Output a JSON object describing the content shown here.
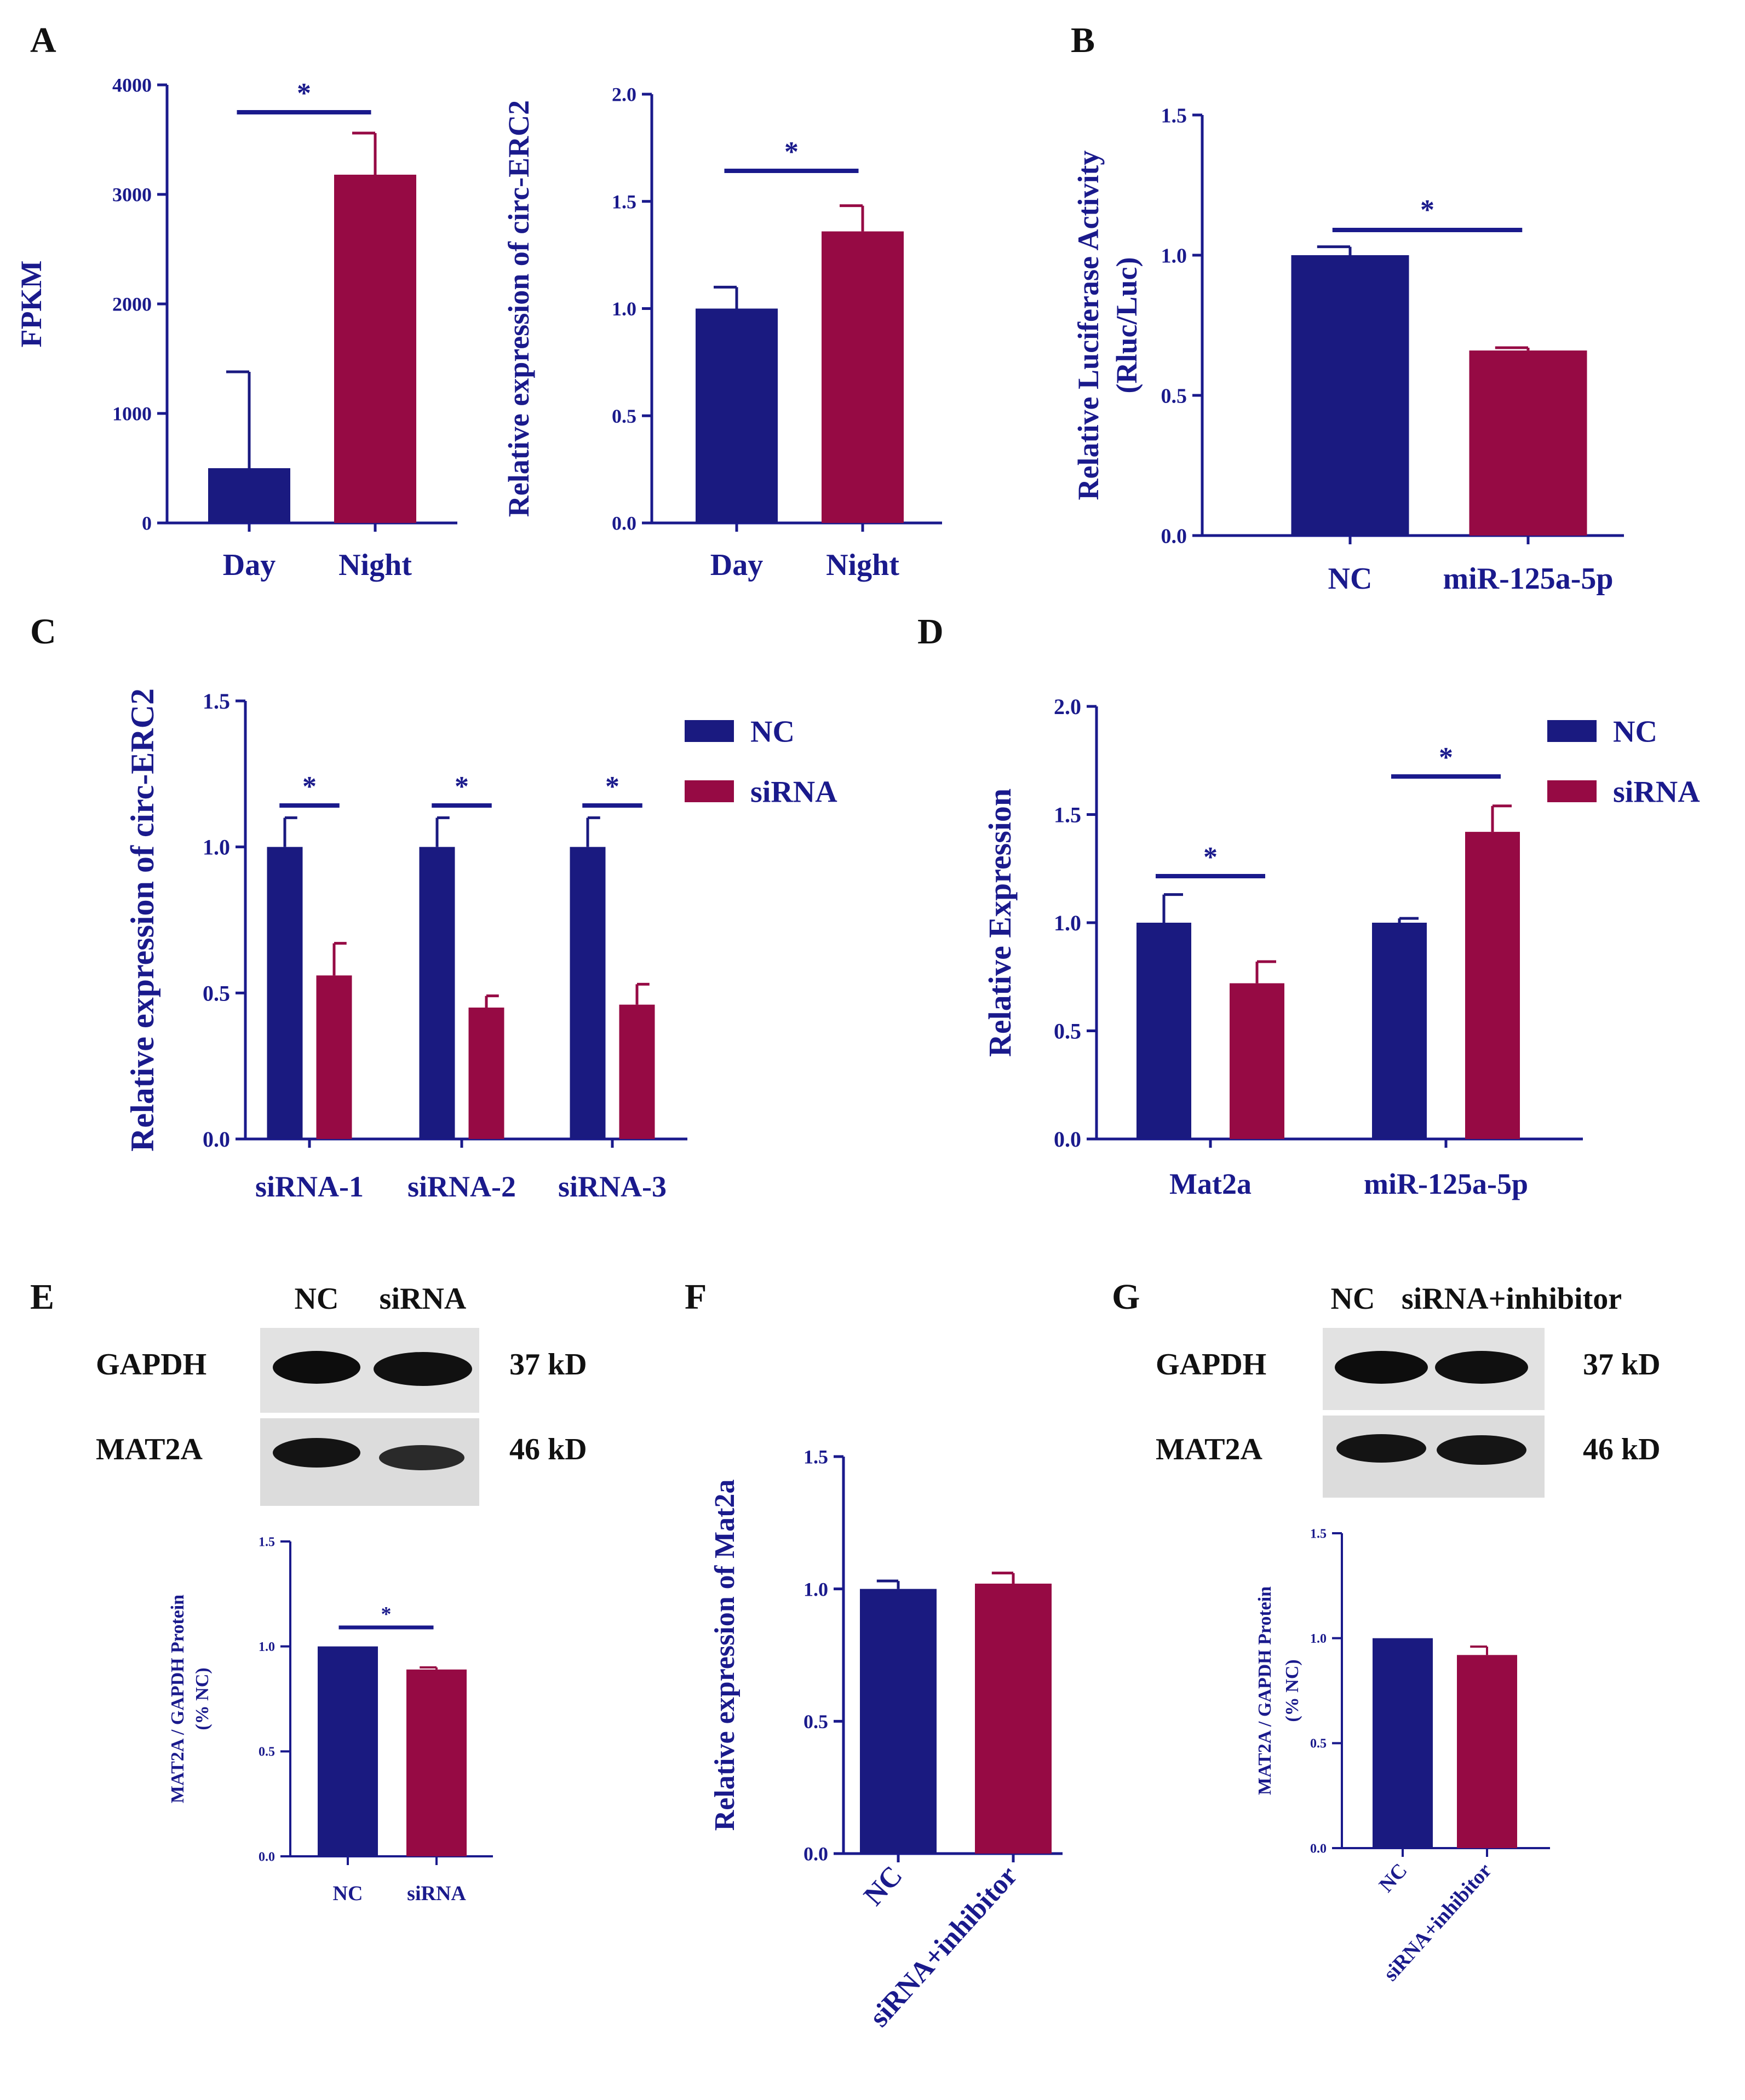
{
  "colors": {
    "nc": "#1a1a80",
    "treat": "#960a44",
    "axis": "#1a1a8c",
    "text": "#111111"
  },
  "panels": {
    "A": {
      "letter": "A"
    },
    "B": {
      "letter": "B"
    },
    "C": {
      "letter": "C"
    },
    "D": {
      "letter": "D"
    },
    "E": {
      "letter": "E",
      "blot": {
        "lanes": [
          "NC",
          "siRNA"
        ],
        "bands": [
          "GAPDH",
          "MAT2A"
        ],
        "sizes": [
          "37 kD",
          "46 kD"
        ]
      }
    },
    "F": {
      "letter": "F"
    },
    "G": {
      "letter": "G",
      "blot": {
        "lanes": [
          "NC",
          "siRNA+inhibitor"
        ],
        "bands": [
          "GAPDH",
          "MAT2A"
        ],
        "sizes": [
          "37 kD",
          "46 kD"
        ]
      }
    }
  },
  "chart_data": [
    {
      "id": "A1",
      "type": "bar",
      "title": "",
      "xlabel": "",
      "ylabel": "FPKM",
      "categories": [
        "Day",
        "Night"
      ],
      "values": [
        500,
        3180
      ],
      "errors": [
        880,
        380
      ],
      "ylim": [
        0,
        4000
      ],
      "yticks": [
        "0",
        "1000",
        "2000",
        "3000",
        "4000"
      ],
      "significance": [
        {
          "from": 0,
          "to": 1,
          "label": "*"
        }
      ]
    },
    {
      "id": "A2",
      "type": "bar",
      "title": "",
      "xlabel": "",
      "ylabel": "Relative expression of circ-ERC2",
      "categories": [
        "Day",
        "Night"
      ],
      "values": [
        1.0,
        1.36
      ],
      "errors": [
        0.1,
        0.12
      ],
      "ylim": [
        0,
        2.0
      ],
      "yticks": [
        "0.0",
        "0.5",
        "1.0",
        "1.5",
        "2.0"
      ],
      "significance": [
        {
          "from": 0,
          "to": 1,
          "label": "*"
        }
      ]
    },
    {
      "id": "B",
      "type": "bar",
      "title": "",
      "xlabel": "",
      "ylabel": "Relative Luciferase Activity",
      "ylabel2": "(Rluc/Luc)",
      "categories": [
        "NC",
        "miR-125a-5p"
      ],
      "values": [
        1.0,
        0.66
      ],
      "errors": [
        0.03,
        0.01
      ],
      "ylim": [
        0,
        1.5
      ],
      "yticks": [
        "0.0",
        "0.5",
        "1.0",
        "1.5"
      ],
      "significance": [
        {
          "from": 0,
          "to": 1,
          "label": "*"
        }
      ]
    },
    {
      "id": "C",
      "type": "bar",
      "title": "",
      "xlabel": "",
      "ylabel": "Relative expression of circ-ERC2",
      "categories": [
        "siRNA-1",
        "siRNA-2",
        "siRNA-3"
      ],
      "series": [
        {
          "name": "NC",
          "values": [
            1.0,
            1.0,
            1.0
          ],
          "errors": [
            0.1,
            0.1,
            0.1
          ]
        },
        {
          "name": "siRNA",
          "values": [
            0.56,
            0.45,
            0.46
          ],
          "errors": [
            0.11,
            0.04,
            0.07
          ]
        }
      ],
      "ylim": [
        0,
        1.5
      ],
      "yticks": [
        "0.0",
        "0.5",
        "1.0",
        "1.5"
      ],
      "significance": [
        {
          "group": 0,
          "label": "*"
        },
        {
          "group": 1,
          "label": "*"
        },
        {
          "group": 2,
          "label": "*"
        }
      ]
    },
    {
      "id": "D",
      "type": "bar",
      "title": "",
      "xlabel": "",
      "ylabel": "Relative Expression",
      "categories": [
        "Mat2a",
        "miR-125a-5p"
      ],
      "series": [
        {
          "name": "NC",
          "values": [
            1.0,
            1.0
          ],
          "errors": [
            0.13,
            0.02
          ]
        },
        {
          "name": "siRNA",
          "values": [
            0.72,
            1.42
          ],
          "errors": [
            0.1,
            0.12
          ]
        }
      ],
      "ylim": [
        0,
        2.0
      ],
      "yticks": [
        "0.0",
        "0.5",
        "1.0",
        "1.5",
        "2.0"
      ],
      "significance": [
        {
          "group": 0,
          "label": "*"
        },
        {
          "group": 1,
          "label": "*"
        }
      ]
    },
    {
      "id": "E",
      "type": "bar",
      "title": "",
      "xlabel": "",
      "ylabel": "MAT2A / GAPDH Protein",
      "ylabel2": "(% NC)",
      "categories": [
        "NC",
        "siRNA"
      ],
      "values": [
        1.0,
        0.89
      ],
      "errors": [
        0.0,
        0.01
      ],
      "ylim": [
        0,
        1.5
      ],
      "yticks": [
        "0.0",
        "0.5",
        "1.0",
        "1.5"
      ],
      "significance": [
        {
          "from": 0,
          "to": 1,
          "label": "*"
        }
      ]
    },
    {
      "id": "F",
      "type": "bar",
      "title": "",
      "xlabel": "",
      "ylabel": "Relative expression of Mat2a",
      "categories": [
        "NC",
        "siRNA+inhibitor"
      ],
      "values": [
        1.0,
        1.02
      ],
      "errors": [
        0.03,
        0.04
      ],
      "ylim": [
        0,
        1.5
      ],
      "yticks": [
        "0.0",
        "0.5",
        "1.0",
        "1.5"
      ],
      "significance": []
    },
    {
      "id": "G",
      "type": "bar",
      "title": "",
      "xlabel": "",
      "ylabel": "MAT2A / GAPDH Protein",
      "ylabel2": "(% NC)",
      "categories": [
        "NC",
        "siRNA+inhibitor"
      ],
      "values": [
        1.0,
        0.92
      ],
      "errors": [
        0.0,
        0.04
      ],
      "ylim": [
        0,
        1.5
      ],
      "yticks": [
        "0.0",
        "0.5",
        "1.0",
        "1.5"
      ],
      "significance": []
    }
  ]
}
